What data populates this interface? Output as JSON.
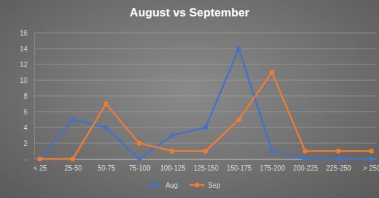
{
  "chart_data": {
    "type": "line",
    "title": "August vs September",
    "categories": [
      "< 25",
      "25-50",
      "50-75",
      "75-100",
      "100-125",
      "125-150",
      "150-175",
      "175-200",
      "200-225",
      "225-250",
      "> 250"
    ],
    "series": [
      {
        "name": "Aug",
        "color": "#4472c4",
        "values": [
          0,
          5,
          4,
          0,
          3,
          4,
          14,
          1,
          0,
          0,
          0
        ]
      },
      {
        "name": "Sep",
        "color": "#ed7d31",
        "values": [
          0,
          0,
          7,
          2,
          1,
          1,
          5,
          11,
          1,
          1,
          1
        ]
      }
    ],
    "ylim": [
      0,
      16
    ],
    "yticks": [
      {
        "value": 0,
        "label": "-"
      },
      2,
      4,
      6,
      8,
      10,
      12,
      14,
      16
    ],
    "grid": true,
    "legend": "bottom",
    "marker": "circle"
  }
}
